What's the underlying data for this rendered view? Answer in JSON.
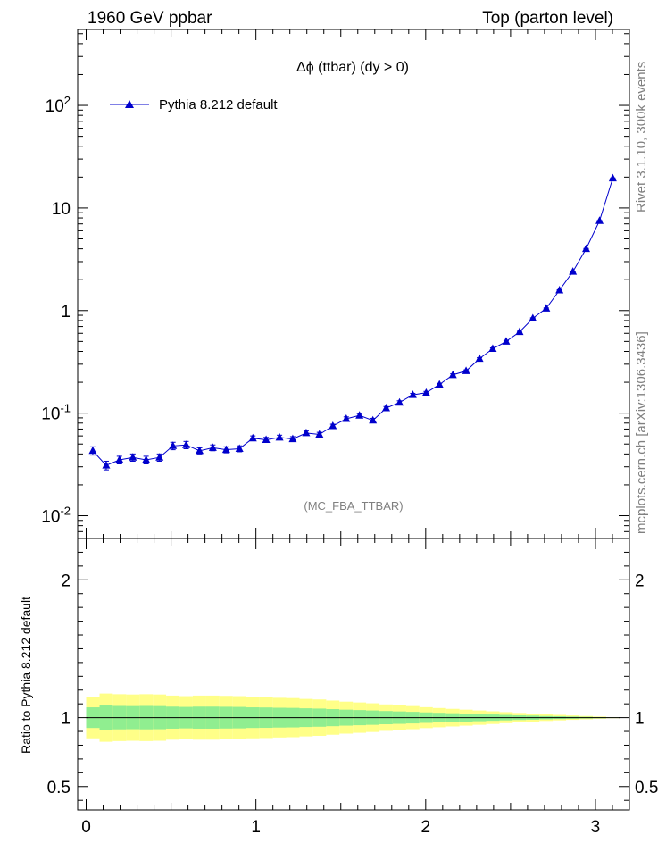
{
  "header": {
    "left": "1960 GeV ppbar",
    "right": "Top (parton level)"
  },
  "side_labels": {
    "rivet": "Rivet 3.1.10,  300k events",
    "mcplots": "mcplots.cern.ch [arXiv:1306.3436]"
  },
  "watermark": "(MC_FBA_TTBAR)",
  "colors": {
    "series": "#0000cc",
    "band_inner": "#90ee90",
    "band_outer": "#ffff88",
    "grey_text": "#808080"
  },
  "chart_data": [
    {
      "type": "line",
      "title": "Δϕ (ttbar) (dy > 0)",
      "yscale": "log",
      "xlim": [
        -0.05,
        3.2
      ],
      "ylim": [
        0.006,
        550
      ],
      "y_tick_labels": [
        "10^-2",
        "10^-1",
        "1",
        "10",
        "10^2"
      ],
      "legend": {
        "placement": "top-left",
        "entries": [
          "Pythia 8.212 default"
        ]
      },
      "series": [
        {
          "name": "Pythia 8.212 default",
          "marker": "triangle",
          "x": [
            0.039,
            0.118,
            0.196,
            0.275,
            0.353,
            0.432,
            0.511,
            0.589,
            0.668,
            0.746,
            0.825,
            0.903,
            0.982,
            1.06,
            1.139,
            1.217,
            1.296,
            1.374,
            1.453,
            1.532,
            1.61,
            1.689,
            1.767,
            1.846,
            1.924,
            2.003,
            2.081,
            2.16,
            2.238,
            2.317,
            2.395,
            2.474,
            2.553,
            2.631,
            2.71,
            2.788,
            2.867,
            2.945,
            3.024,
            3.102
          ],
          "y": [
            0.043,
            0.031,
            0.035,
            0.037,
            0.035,
            0.037,
            0.048,
            0.049,
            0.043,
            0.046,
            0.044,
            0.045,
            0.057,
            0.055,
            0.058,
            0.056,
            0.064,
            0.062,
            0.075,
            0.088,
            0.095,
            0.085,
            0.112,
            0.127,
            0.151,
            0.158,
            0.19,
            0.236,
            0.258,
            0.34,
            0.425,
            0.5,
            0.62,
            0.84,
            1.05,
            1.58,
            2.4,
            4.0,
            7.5,
            19.5
          ],
          "yerr": [
            0.004,
            0.003,
            0.003,
            0.003,
            0.003,
            0.003,
            0.004,
            0.004,
            0.003,
            0.003,
            0.003,
            0.003,
            0.003,
            0.003,
            0.003,
            0.003,
            0.003,
            0.003,
            0.003,
            0.004,
            0.004,
            0.004,
            0.004,
            0.005,
            0.005,
            0.005,
            0.005,
            0.006,
            0.006,
            0.007,
            0.008,
            0.008,
            0.009,
            0.01,
            0.012,
            0.015,
            0.02,
            0.03,
            0.05,
            0.1
          ]
        }
      ]
    },
    {
      "type": "area",
      "ylabel": "Ratio to Pythia 8.212 default",
      "xlim": [
        -0.05,
        3.2
      ],
      "ylim": [
        0.33,
        2.3
      ],
      "x_ticks": [
        0,
        1,
        2,
        3
      ],
      "y_ticks": [
        0.5,
        1,
        2
      ],
      "reference_line": 1,
      "bands": {
        "bin_edges": [
          0,
          0.079,
          0.157,
          0.236,
          0.314,
          0.393,
          0.471,
          0.55,
          0.628,
          0.707,
          0.785,
          0.864,
          0.942,
          1.021,
          1.1,
          1.178,
          1.257,
          1.335,
          1.414,
          1.492,
          1.571,
          1.649,
          1.728,
          1.806,
          1.885,
          1.963,
          2.042,
          2.12,
          2.199,
          2.277,
          2.356,
          2.435,
          2.513,
          2.592,
          2.67,
          2.749,
          2.827,
          2.906,
          2.985,
          3.063,
          3.142
        ],
        "inner_halfwidth": [
          0.075,
          0.088,
          0.085,
          0.084,
          0.085,
          0.084,
          0.08,
          0.078,
          0.08,
          0.08,
          0.079,
          0.078,
          0.075,
          0.074,
          0.072,
          0.071,
          0.068,
          0.066,
          0.062,
          0.058,
          0.055,
          0.052,
          0.048,
          0.045,
          0.042,
          0.038,
          0.035,
          0.032,
          0.029,
          0.026,
          0.023,
          0.02,
          0.017,
          0.015,
          0.012,
          0.01,
          0.008,
          0.006,
          0.004,
          0.002
        ],
        "outer_halfwidth": [
          0.15,
          0.175,
          0.17,
          0.168,
          0.17,
          0.168,
          0.16,
          0.156,
          0.16,
          0.16,
          0.158,
          0.156,
          0.15,
          0.148,
          0.144,
          0.142,
          0.136,
          0.132,
          0.124,
          0.116,
          0.11,
          0.104,
          0.096,
          0.09,
          0.084,
          0.076,
          0.07,
          0.064,
          0.058,
          0.052,
          0.046,
          0.04,
          0.034,
          0.03,
          0.024,
          0.02,
          0.016,
          0.012,
          0.008,
          0.004
        ]
      }
    }
  ]
}
